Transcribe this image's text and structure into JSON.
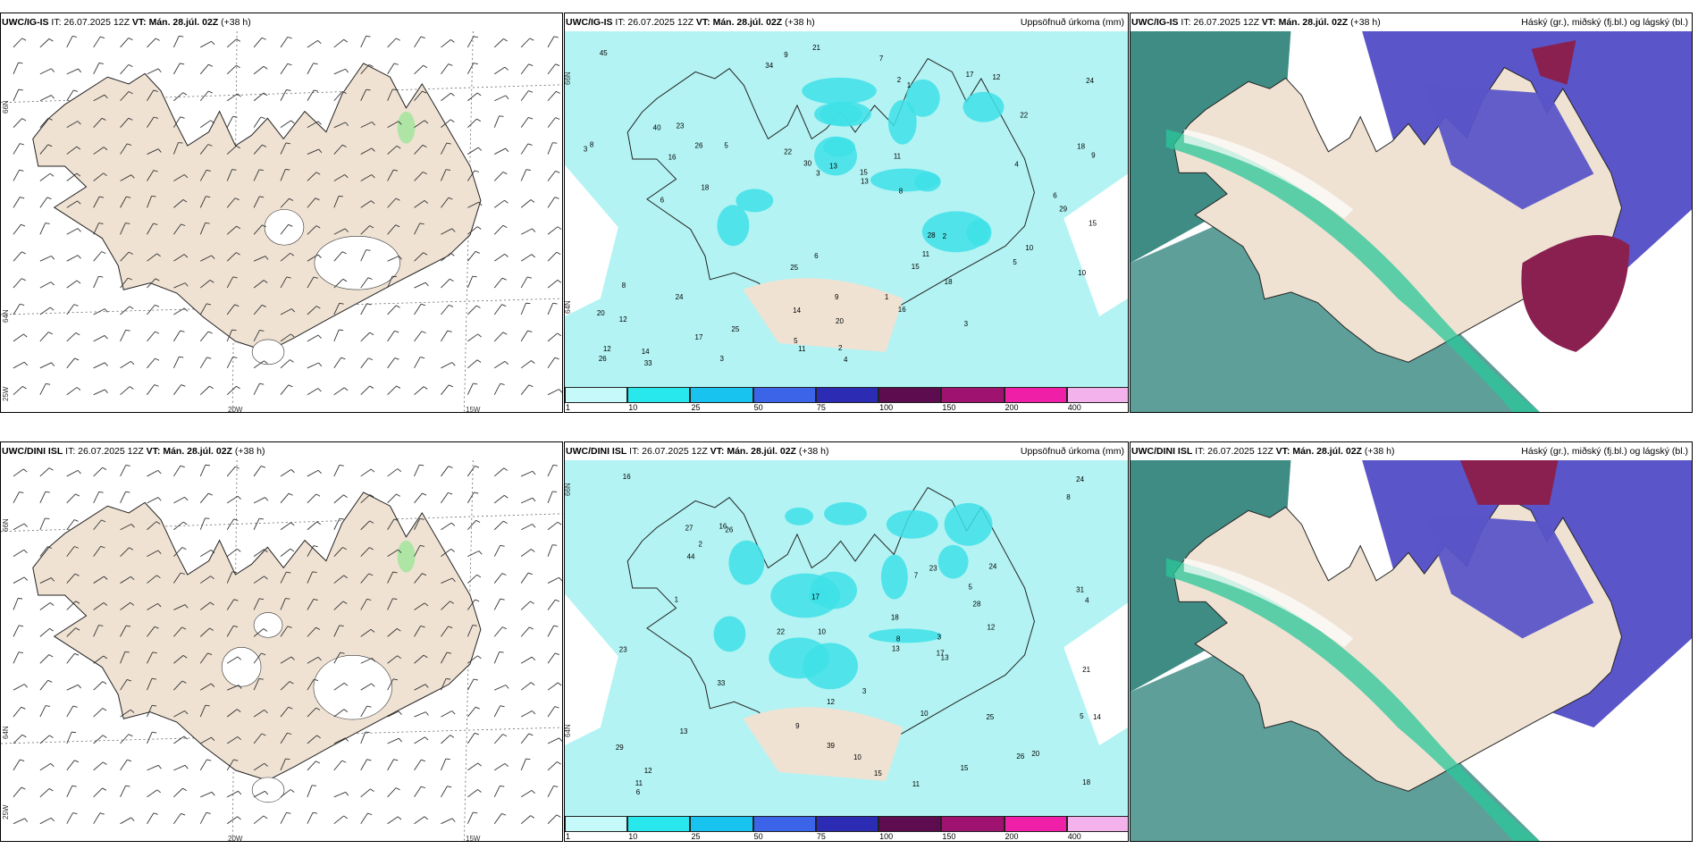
{
  "colors": {
    "land": "#efe2d3",
    "coast": "#222222",
    "precip_light": "#b3f3f3",
    "precip_mid": "#3ee0e8",
    "cloud_high": "#2a7f78",
    "cloud_mid": "#5a55c8",
    "cloud_low": "#8a2050",
    "jet_green": "#29c79a",
    "barb_green": "#9ee69a"
  },
  "rows": [
    {
      "model": "UWC/IG-IS",
      "it_label": "IT: 26.07.2025 12Z",
      "vt_label": "VT: Mán. 28.júl. 02Z",
      "lead": "(+38 h)",
      "axes": {
        "lat_top": "66N",
        "lat_mid": "64N",
        "lon_left": "25W",
        "lon_a": "20W",
        "lon_b": "15W"
      },
      "precip_title": "Uppsöfnuð úrkoma (mm)",
      "cloud_title": "Háský (gr.), miðský (fj.bl.) og lágský (bl.)",
      "precip_labels": [
        "2",
        "4",
        "5",
        "16",
        "15",
        "17",
        "18",
        "15",
        "12",
        "14",
        "13",
        "8",
        "22",
        "24",
        "11",
        "16",
        "24",
        "33",
        "26",
        "9",
        "12",
        "21",
        "18",
        "8",
        "23",
        "17",
        "14",
        "7",
        "34",
        "30",
        "10",
        "25",
        "25",
        "28",
        "26",
        "20",
        "45",
        "40",
        "15",
        "22",
        "20",
        "13",
        "12",
        "8",
        "10",
        "5",
        "4",
        "6",
        "3",
        "2",
        "1",
        "9",
        "29",
        "11",
        "18",
        "3",
        "5",
        "3",
        "11",
        "2",
        "1",
        "6",
        "3",
        "6",
        "9"
      ]
    },
    {
      "model": "UWC/DINI ISL",
      "it_label": "IT: 26.07.2025 12Z",
      "vt_label": "VT: Mán. 28.júl. 02Z",
      "lead": "(+38 h)",
      "axes": {
        "lat_top": "66N",
        "lat_mid": "64N",
        "lon_left": "25W",
        "lon_a": "20W",
        "lon_b": "15W"
      },
      "precip_title": "Uppsöfnuð úrkoma (mm)",
      "cloud_title": "Háský (gr.), miðský (fj.bl.) og lágský (bl.)",
      "precip_labels": [
        "16",
        "13",
        "10",
        "11",
        "12",
        "8",
        "13",
        "3",
        "5",
        "29",
        "23",
        "20",
        "18",
        "28",
        "14",
        "12",
        "26",
        "10",
        "21",
        "15",
        "27",
        "39",
        "24",
        "31",
        "18",
        "25",
        "33",
        "24",
        "22",
        "17",
        "16",
        "23",
        "26",
        "15",
        "44",
        "12",
        "10",
        "11",
        "8",
        "4",
        "6",
        "7",
        "9",
        "3",
        "2",
        "1",
        "5",
        "17",
        "13"
      ]
    }
  ],
  "colorbar": {
    "ticks": [
      "1",
      "10",
      "25",
      "50",
      "75",
      "100",
      "150",
      "200",
      "400"
    ],
    "colors": [
      "#c6fafa",
      "#28e8ee",
      "#19c3ef",
      "#3b64e8",
      "#2b2bb3",
      "#5c0c4f",
      "#a0126f",
      "#f01fa8",
      "#f4b2ec"
    ]
  }
}
